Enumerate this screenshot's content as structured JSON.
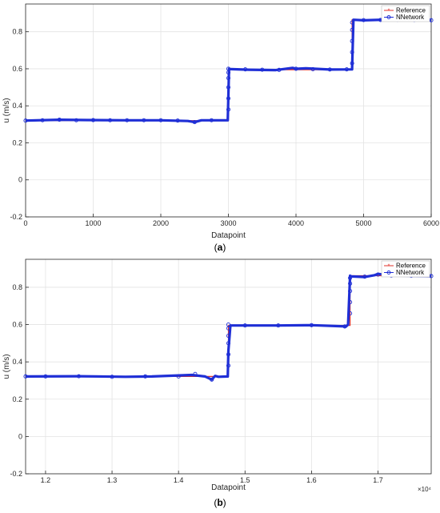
{
  "colors": {
    "reference": "#e0302a",
    "nnetwork": "#1f2fd6",
    "grid": "#e3e3e3",
    "axis": "#262626"
  },
  "chart_data": [
    {
      "type": "line",
      "caption_letter": "a",
      "xlabel": "Datapoint",
      "ylabel": "u (m/s)",
      "xlim": [
        0,
        6000
      ],
      "ylim": [
        -0.2,
        0.95
      ],
      "x_ticks": [
        0,
        1000,
        2000,
        3000,
        4000,
        5000,
        6000
      ],
      "x_tick_labels": [
        "0",
        "1000",
        "2000",
        "3000",
        "4000",
        "5000",
        "6000"
      ],
      "y_ticks": [
        -0.2,
        0,
        0.2,
        0.4,
        0.6,
        0.8
      ],
      "y_tick_labels": [
        "-0.2",
        "0",
        "0.2",
        "0.4",
        "0.6",
        "0.8"
      ],
      "x_exponent_label": "",
      "grid": true,
      "legend_position": "top-right",
      "series": [
        {
          "name": "Reference",
          "color": "#e0302a",
          "x": [
            0,
            3000,
            3000,
            4830,
            4830,
            6000
          ],
          "values": [
            0.32,
            0.32,
            0.595,
            0.595,
            0.865,
            0.865
          ]
        },
        {
          "name": "NNetwork",
          "color": "#1f2fd6",
          "x": [
            0,
            500,
            900,
            1500,
            2000,
            2400,
            2500,
            2600,
            2990,
            3000,
            3010,
            3040,
            3300,
            3700,
            3950,
            4000,
            4150,
            4500,
            4830,
            4850,
            5000,
            5400,
            6000
          ],
          "values": [
            0.32,
            0.325,
            0.323,
            0.322,
            0.322,
            0.318,
            0.312,
            0.322,
            0.322,
            0.46,
            0.6,
            0.598,
            0.595,
            0.593,
            0.605,
            0.6,
            0.603,
            0.596,
            0.597,
            0.865,
            0.862,
            0.866,
            0.862
          ]
        }
      ],
      "markers_x": [
        0,
        250,
        500,
        750,
        1000,
        1250,
        1500,
        1750,
        2000,
        2250,
        2500,
        2750,
        3000,
        3000,
        3000,
        3000,
        3000,
        3000,
        3250,
        3500,
        3750,
        4000,
        4250,
        4500,
        4750,
        4830,
        4830,
        4830,
        4830,
        4830,
        5000,
        5250,
        5500,
        5750,
        6000
      ],
      "markers_y": [
        0.32,
        0.322,
        0.325,
        0.322,
        0.323,
        0.322,
        0.322,
        0.322,
        0.322,
        0.32,
        0.312,
        0.322,
        0.38,
        0.44,
        0.5,
        0.55,
        0.58,
        0.6,
        0.597,
        0.595,
        0.594,
        0.6,
        0.598,
        0.596,
        0.597,
        0.63,
        0.69,
        0.75,
        0.81,
        0.85,
        0.863,
        0.864,
        0.865,
        0.864,
        0.862
      ]
    },
    {
      "type": "line",
      "caption_letter": "b",
      "xlabel": "Datapoint",
      "ylabel": "u (m/s)",
      "xlim": [
        1.17,
        1.78
      ],
      "ylim": [
        -0.2,
        0.95
      ],
      "x_ticks": [
        1.2,
        1.3,
        1.4,
        1.5,
        1.6,
        1.7
      ],
      "x_tick_labels": [
        "1.2",
        "1.3",
        "1.4",
        "1.5",
        "1.6",
        "1.7"
      ],
      "y_ticks": [
        -0.2,
        0,
        0.2,
        0.4,
        0.6,
        0.8
      ],
      "y_tick_labels": [
        "-0.2",
        "0",
        "0.2",
        "0.4",
        "0.6",
        "0.8"
      ],
      "x_exponent_label": "×10⁴",
      "grid": true,
      "legend_position": "top-right",
      "series": [
        {
          "name": "Reference",
          "color": "#e0302a",
          "x": [
            1.17,
            1.475,
            1.475,
            1.658,
            1.658,
            1.78
          ],
          "values": [
            0.322,
            0.322,
            0.595,
            0.595,
            0.862,
            0.862
          ]
        },
        {
          "name": "NNetwork",
          "color": "#1f2fd6",
          "x": [
            1.17,
            1.25,
            1.32,
            1.36,
            1.42,
            1.44,
            1.45,
            1.455,
            1.46,
            1.474,
            1.475,
            1.478,
            1.55,
            1.6,
            1.652,
            1.655,
            1.658,
            1.66,
            1.68,
            1.695,
            1.7,
            1.72,
            1.78
          ],
          "values": [
            0.322,
            0.323,
            0.32,
            0.322,
            0.33,
            0.322,
            0.305,
            0.325,
            0.32,
            0.322,
            0.46,
            0.595,
            0.595,
            0.597,
            0.59,
            0.6,
            0.862,
            0.858,
            0.855,
            0.865,
            0.872,
            0.863,
            0.86
          ]
        }
      ],
      "markers_x": [
        1.17,
        1.2,
        1.25,
        1.3,
        1.35,
        1.4,
        1.425,
        1.45,
        1.475,
        1.475,
        1.475,
        1.475,
        1.475,
        1.475,
        1.5,
        1.55,
        1.6,
        1.65,
        1.658,
        1.658,
        1.658,
        1.658,
        1.658,
        1.68,
        1.7,
        1.72,
        1.75,
        1.78
      ],
      "markers_y": [
        0.322,
        0.322,
        0.323,
        0.32,
        0.322,
        0.322,
        0.335,
        0.305,
        0.38,
        0.44,
        0.5,
        0.54,
        0.58,
        0.6,
        0.595,
        0.595,
        0.597,
        0.59,
        0.66,
        0.72,
        0.78,
        0.82,
        0.85,
        0.857,
        0.868,
        0.863,
        0.862,
        0.86
      ]
    }
  ]
}
